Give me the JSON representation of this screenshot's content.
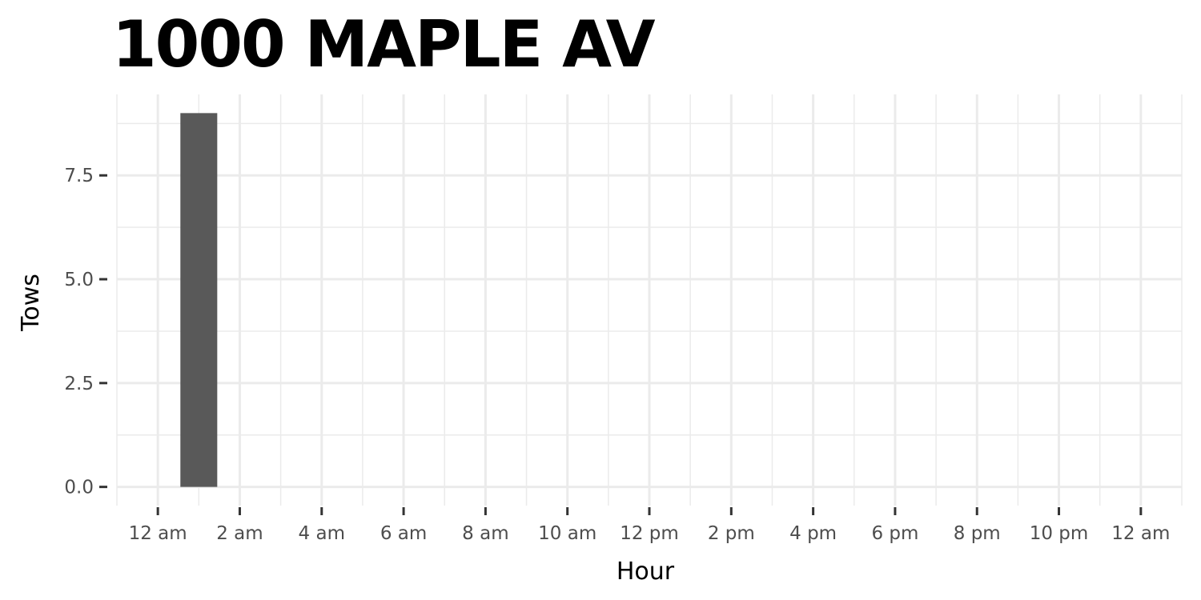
{
  "chart_data": {
    "type": "bar",
    "title": "1000 MAPLE AV",
    "xlabel": "Hour",
    "ylabel": "Tows",
    "x": [
      1
    ],
    "values": [
      9
    ],
    "xlim": [
      -1,
      25
    ],
    "ylim": [
      -0.45,
      9.45
    ],
    "x_ticks": [
      0,
      2,
      4,
      6,
      8,
      10,
      12,
      14,
      16,
      18,
      20,
      22,
      24
    ],
    "x_tick_labels": [
      "12 am",
      "2 am",
      "4 am",
      "6 am",
      "8 am",
      "10 am",
      "12 pm",
      "2 pm",
      "4 pm",
      "6 pm",
      "8 pm",
      "10 pm",
      "12 am"
    ],
    "y_ticks": [
      0,
      2.5,
      5,
      7.5
    ],
    "y_tick_labels": [
      "0.0",
      "2.5",
      "5.0",
      "7.5"
    ],
    "bar_color": "#595959",
    "grid": true,
    "grid_color": "#ebebeb",
    "legend": "none"
  }
}
